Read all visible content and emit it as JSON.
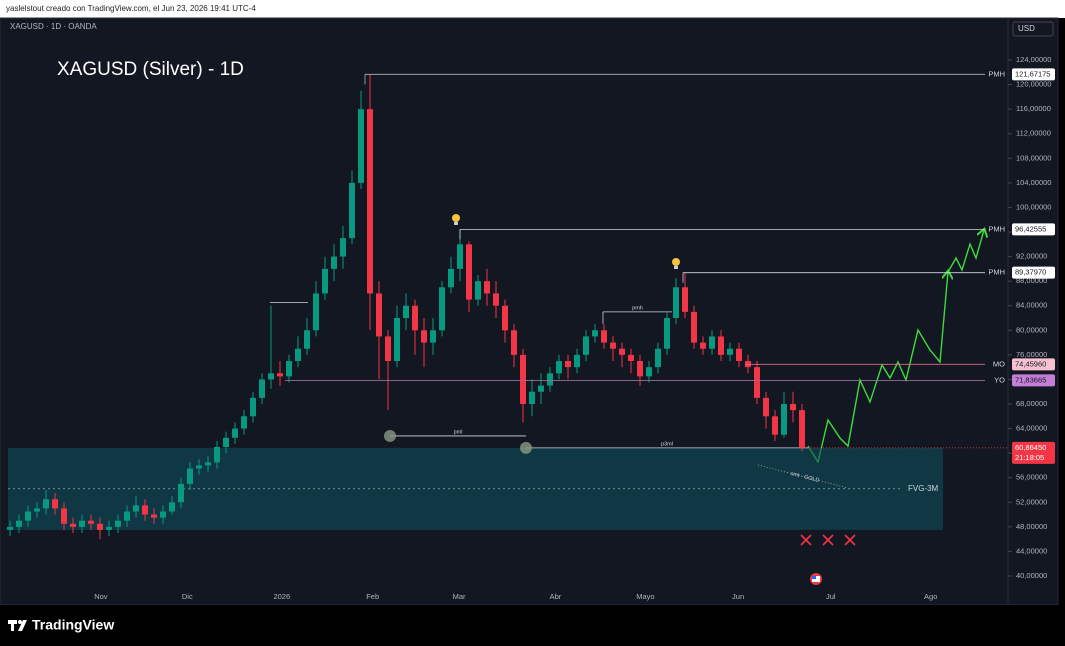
{
  "header": "yaslelstout creado con TradingView.com, el Jun 23, 2026 19:41 UTC-4",
  "footer": "TradingView",
  "chart_data": {
    "type": "candlestick",
    "symbol": "XAGUSD · 1D · OANDA",
    "title": "XAGUSD (Silver) - 1D",
    "currency": "USD",
    "up_color": "#089981",
    "down_color": "#f23645",
    "grid": false,
    "open": [
      47.5,
      48,
      49,
      50.5,
      51,
      52.5,
      51,
      48.5,
      48,
      49,
      48.5,
      47.5,
      48,
      49,
      50.5,
      51.5,
      50,
      49.5,
      50.5,
      52,
      55,
      57.5,
      58,
      58.5,
      61,
      62.5,
      64,
      66,
      69,
      72,
      73,
      72.5,
      75,
      77,
      80,
      86,
      90,
      92,
      95,
      104,
      116,
      86,
      79,
      75,
      82,
      84,
      80,
      78,
      80,
      87,
      90,
      94,
      85,
      88,
      86,
      84,
      80,
      76,
      68,
      70,
      71,
      73,
      75,
      74,
      76,
      79,
      80,
      78,
      77,
      76,
      75,
      72.5,
      74,
      77,
      82,
      87,
      83,
      78,
      77,
      79,
      76,
      77,
      75,
      74,
      69,
      66,
      63,
      68,
      67
    ],
    "high": [
      49,
      50,
      51.5,
      52,
      54,
      53.5,
      52,
      49.5,
      50,
      50,
      49.5,
      49,
      50,
      51.5,
      53,
      52.5,
      51,
      51.5,
      53,
      56,
      58.5,
      59,
      59.5,
      62,
      63.5,
      65,
      67,
      70,
      73,
      84,
      75,
      76,
      79,
      82,
      88,
      92,
      94,
      97,
      106,
      119,
      121.67175,
      88,
      80,
      84,
      86,
      85,
      82,
      82,
      88,
      92,
      96.42555,
      94.5,
      89,
      90,
      88,
      85,
      81,
      77,
      72,
      73,
      74,
      76,
      76,
      77,
      80,
      81,
      81,
      79,
      78,
      77,
      76,
      75,
      78,
      83,
      88.5,
      89.3797,
      84,
      79,
      80,
      80,
      78,
      78,
      76,
      75,
      70,
      67,
      70,
      70,
      68
    ],
    "low": [
      46.5,
      47,
      48,
      49.5,
      50,
      50,
      47.5,
      47,
      47,
      47.5,
      46,
      46.5,
      47,
      48,
      49.5,
      49,
      48.5,
      48.5,
      50,
      51,
      54,
      56.5,
      57,
      57.5,
      60,
      61.5,
      63,
      65,
      68,
      70.5,
      71,
      71.5,
      74,
      76,
      79,
      85,
      88,
      90,
      94,
      103,
      80,
      72,
      67,
      74,
      80,
      76,
      74,
      76,
      79,
      86,
      88,
      83,
      84,
      84,
      82,
      78,
      74,
      65,
      66,
      68,
      70,
      72,
      72,
      73,
      75,
      78,
      77,
      75,
      74,
      73,
      71,
      71.5,
      73,
      76,
      81,
      82,
      77,
      76,
      76,
      75,
      75,
      74,
      73,
      68,
      64,
      62,
      62.5,
      65,
      60.3
    ],
    "close": [
      48,
      49,
      50.5,
      51,
      52.5,
      51,
      48.5,
      48,
      49,
      48.5,
      47.5,
      48,
      49,
      50.5,
      51.5,
      50,
      49.5,
      50.5,
      52,
      55,
      57.5,
      58,
      58.5,
      61,
      62.5,
      64,
      66,
      69,
      72,
      73,
      72.5,
      75,
      77,
      80,
      86,
      90,
      92,
      95,
      104,
      116,
      86,
      79,
      75,
      82,
      84,
      80,
      78,
      80,
      87,
      90,
      94,
      85,
      88,
      86,
      84,
      80,
      76,
      68,
      70,
      71,
      73,
      75,
      74,
      76,
      79,
      80,
      78,
      77,
      76,
      75,
      72.5,
      74,
      77,
      82,
      87,
      83,
      78,
      77,
      79,
      76,
      77,
      75,
      74,
      69,
      66,
      63,
      68,
      67,
      60.86
    ],
    "xlim": [
      -0.2,
      110.5
    ],
    "xticks": [
      {
        "value": 10.1,
        "label": "Nov"
      },
      {
        "value": 19.7,
        "label": "Dic"
      },
      {
        "value": 30.2,
        "label": "2026"
      },
      {
        "value": 40.3,
        "label": "Feb"
      },
      {
        "value": 49.9,
        "label": "Mar"
      },
      {
        "value": 60.6,
        "label": "Abr"
      },
      {
        "value": 70.6,
        "label": "Mayo"
      },
      {
        "value": 80.9,
        "label": "Jun"
      },
      {
        "value": 91.2,
        "label": "Jul"
      },
      {
        "value": 102.3,
        "label": "Ago"
      }
    ],
    "ylim": [
      37.72,
      130.84
    ],
    "yticks": [
      {
        "value": 40,
        "label": "40,00000"
      },
      {
        "value": 44,
        "label": "44,00000"
      },
      {
        "value": 48,
        "label": "48,00000"
      },
      {
        "value": 52,
        "label": "52,00000"
      },
      {
        "value": 56,
        "label": "56,00000"
      },
      {
        "value": 60,
        "label": "60,00000"
      },
      {
        "value": 64,
        "label": "64,00000"
      },
      {
        "value": 68,
        "label": "68,00000"
      },
      {
        "value": 72,
        "label": "72,00000"
      },
      {
        "value": 76,
        "label": "76,00000"
      },
      {
        "value": 80,
        "label": "80,00000"
      },
      {
        "value": 84,
        "label": "84,00000"
      },
      {
        "value": 88,
        "label": "88,00000"
      },
      {
        "value": 92,
        "label": "92,00000"
      },
      {
        "value": 96,
        "label": "96,00000"
      },
      {
        "value": 100,
        "label": "100,00000"
      },
      {
        "value": 104,
        "label": "104,00000"
      },
      {
        "value": 108,
        "label": "108,00000"
      },
      {
        "value": 112,
        "label": "112,00000"
      },
      {
        "value": 116,
        "label": "116,00000"
      },
      {
        "value": 120,
        "label": "120,00000"
      },
      {
        "value": 124,
        "label": "124,00000"
      }
    ],
    "levels": [
      {
        "name": "PMH",
        "value": 121.67175,
        "value_label": "121,67175",
        "color": "#b2b5be",
        "tag_color": "#ffffff",
        "text_color": "#131722"
      },
      {
        "name": "PMH",
        "value": 96.42555,
        "value_label": "96,42555",
        "color": "#d1d4dc",
        "tag_color": "#ffffff",
        "text_color": "#131722"
      },
      {
        "name": "PMH",
        "value": 89.3797,
        "value_label": "89,37970",
        "color": "#d1d4dc",
        "tag_color": "#ffffff",
        "text_color": "#131722"
      },
      {
        "name": "MO",
        "value": 74.4596,
        "value_label": "74,45960",
        "color": "#e06b8b",
        "tag_color": "#f7c1d0",
        "text_color": "#131722"
      },
      {
        "name": "YO",
        "value": 71.83665,
        "value_label": "71,83665",
        "color": "#9c6b9e",
        "tag_color": "#c37fd6",
        "text_color": "#131722"
      }
    ],
    "last_price": {
      "value": 60.8645,
      "value_label": "60,86450",
      "countdown": "21:18:05",
      "color": "#f23645"
    },
    "annotations": [
      {
        "label": "pml",
        "value": 62.8
      },
      {
        "label": "pmh",
        "value": 83
      },
      {
        "label": "p3ml",
        "value": 60.86
      },
      {
        "value": 84.5
      }
    ],
    "fvg": {
      "label": "FVG-3M",
      "top": 60.86,
      "bottom": 47.5,
      "mid": 54.2
    },
    "smt": "smt - GOLD"
  }
}
